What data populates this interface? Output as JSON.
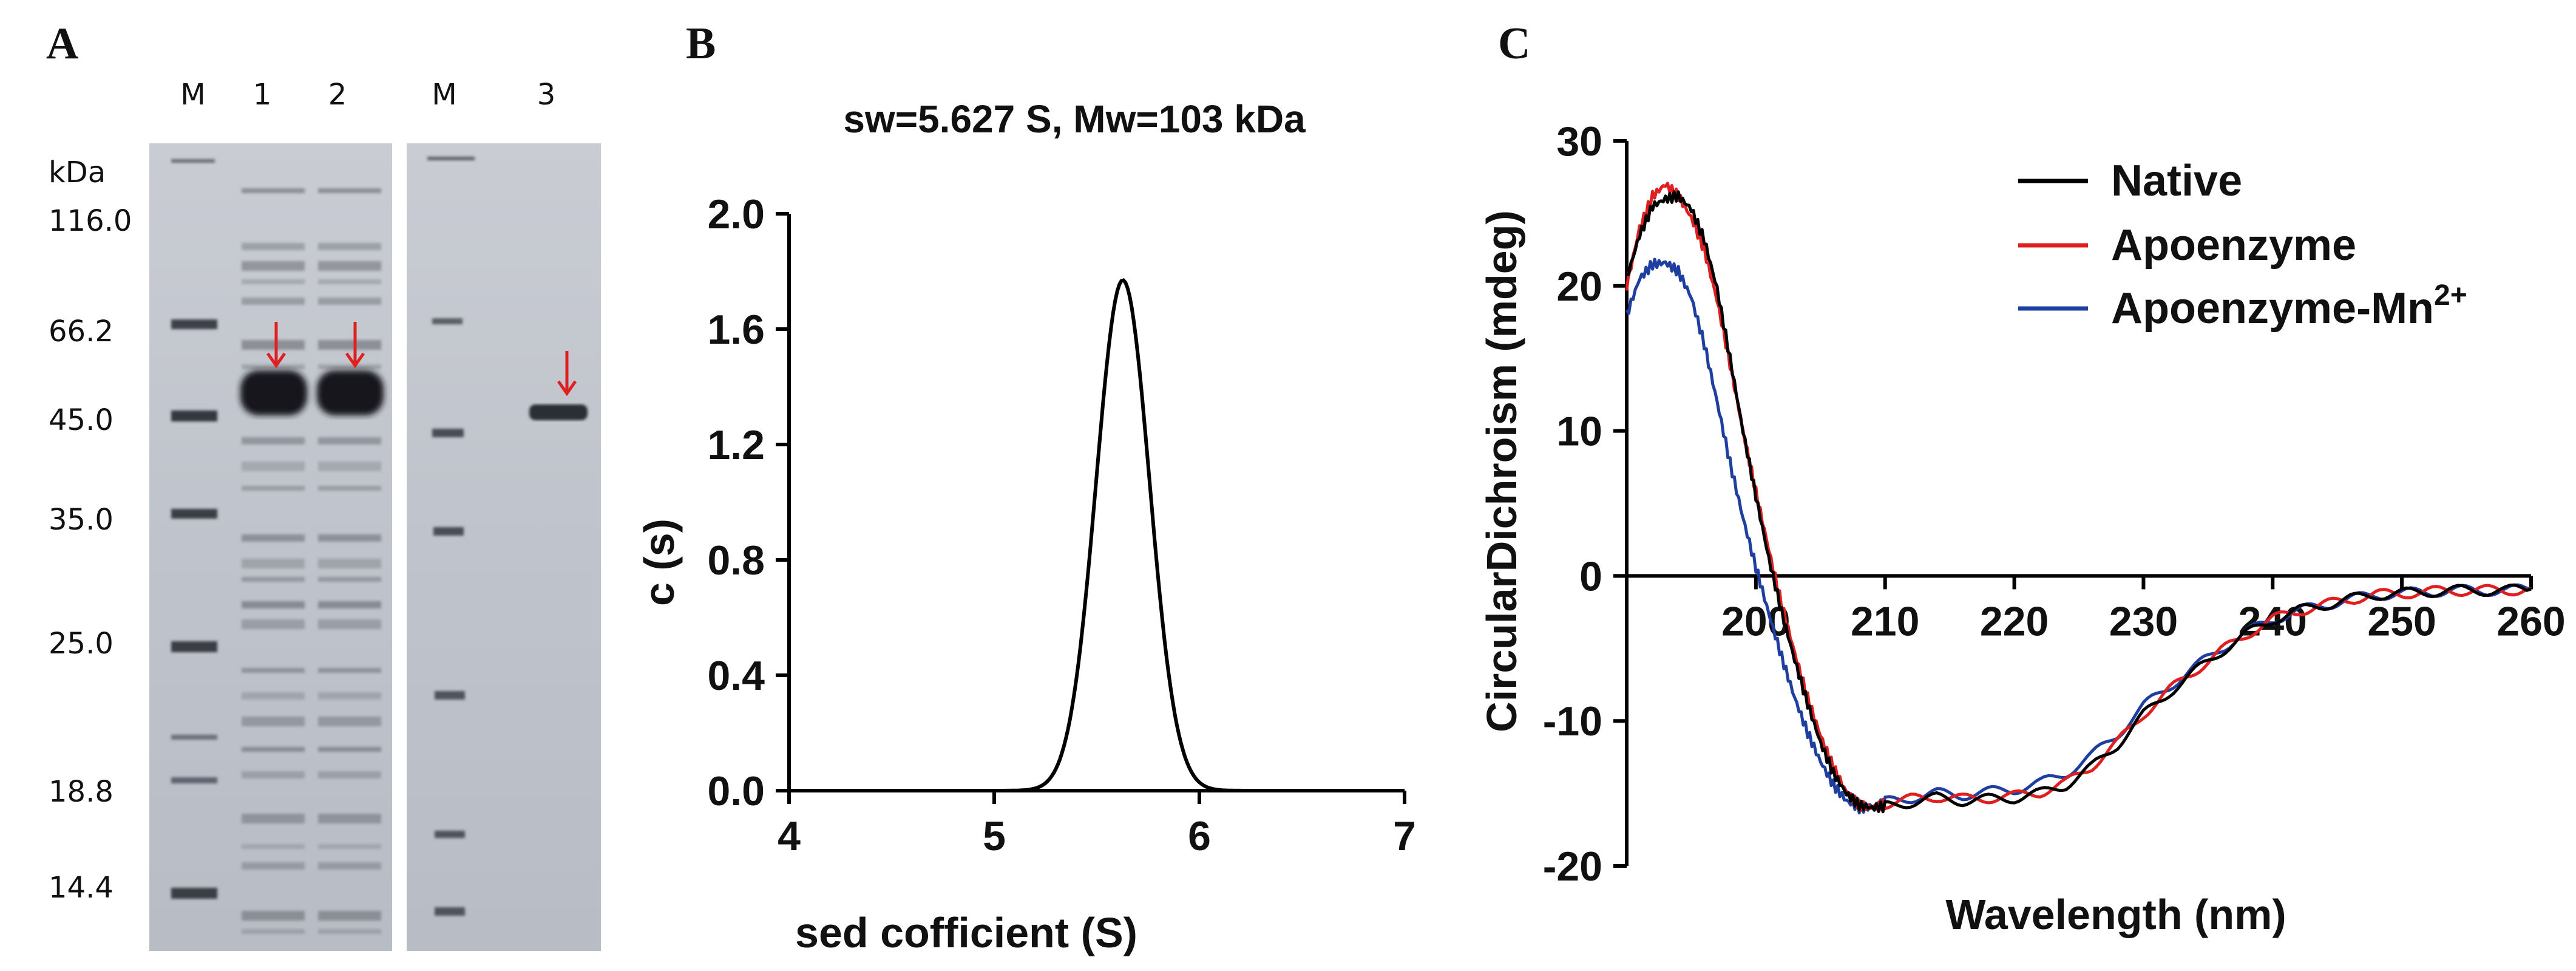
{
  "panels": {
    "A": {
      "letter": "A"
    },
    "B": {
      "letter": "B"
    },
    "C": {
      "letter": "C"
    }
  },
  "gel": {
    "lane_headers": [
      "M",
      "1",
      "2",
      "M",
      "3"
    ],
    "unit_label": "kDa",
    "markers": [
      "116.0",
      "66.2",
      "45.0",
      "35.0",
      "25.0",
      "18.8",
      "14.4"
    ],
    "arrow_color": "#e02020"
  },
  "chart_data": [
    {
      "type": "line",
      "title": "sw=5.627 S, Mw=103 kDa",
      "xlabel": "sed cofficient (S)",
      "ylabel": "c (s)",
      "xlim": [
        4,
        7
      ],
      "ylim": [
        0,
        2.0
      ],
      "xticks": [
        "4",
        "5",
        "6",
        "7"
      ],
      "yticks": [
        "0.0",
        "0.4",
        "0.8",
        "1.2",
        "1.6",
        "2.0"
      ],
      "peak_center": 5.627,
      "peak_height": 1.77,
      "peak_sigma": 0.13,
      "series": [
        {
          "name": "c(s)",
          "color": "#000000",
          "x": [
            4.0,
            5.0,
            5.2,
            5.3,
            5.4,
            5.5,
            5.55,
            5.6,
            5.627,
            5.65,
            5.7,
            5.8,
            5.9,
            6.0,
            6.2,
            7.0
          ],
          "y": [
            0.0,
            0.0,
            0.01,
            0.06,
            0.28,
            0.87,
            1.28,
            1.69,
            1.77,
            1.74,
            1.53,
            0.78,
            0.23,
            0.03,
            0.0,
            0.0
          ]
        }
      ]
    },
    {
      "type": "line",
      "title": "",
      "xlabel": "Wavelength (nm)",
      "ylabel": "CircularDichroism (mdeg)",
      "xlim": [
        190,
        260
      ],
      "ylim": [
        -20,
        30
      ],
      "xticks": [
        "200",
        "210",
        "220",
        "230",
        "240",
        "250",
        "260"
      ],
      "yticks": [
        "-20",
        "-10",
        "0",
        "10",
        "20",
        "30"
      ],
      "legend": [
        "Native",
        "Apoenzyme",
        "Apoenzyme-Mn2+"
      ],
      "legend_label_3": "Apoenzyme-Mn",
      "legend_sup_3": "2+",
      "series": [
        {
          "name": "Native",
          "color": "#000000",
          "x": [
            190,
            191,
            192,
            193,
            194,
            195,
            196,
            197,
            198,
            199,
            200,
            201,
            202,
            203,
            204,
            205,
            206,
            207,
            208,
            209,
            210,
            212,
            214,
            216,
            218,
            220,
            222,
            224,
            226,
            228,
            230,
            232,
            234,
            236,
            238,
            240,
            242,
            244,
            246,
            248,
            250,
            252,
            254,
            256,
            258,
            260
          ],
          "y": [
            20.5,
            23.5,
            25.5,
            26.0,
            26.2,
            25.3,
            23.2,
            19.8,
            15.0,
            10.0,
            5.5,
            1.2,
            -2.5,
            -5.8,
            -8.8,
            -11.5,
            -13.6,
            -15.0,
            -15.8,
            -16.0,
            -15.9,
            -15.6,
            -15.3,
            -15.5,
            -15.4,
            -15.3,
            -15.0,
            -14.4,
            -13.2,
            -11.6,
            -9.6,
            -8.0,
            -6.6,
            -5.2,
            -4.0,
            -3.0,
            -2.4,
            -2.0,
            -1.6,
            -1.3,
            -1.2,
            -1.1,
            -1.0,
            -1.0,
            -1.0,
            -0.9
          ]
        },
        {
          "name": "Apoenzyme",
          "color": "#e02020",
          "x": [
            190,
            191,
            192,
            193,
            194,
            195,
            196,
            197,
            198,
            199,
            200,
            201,
            202,
            203,
            204,
            205,
            206,
            207,
            208,
            209,
            210,
            212,
            214,
            216,
            218,
            220,
            222,
            224,
            226,
            228,
            230,
            232,
            234,
            236,
            238,
            240,
            242,
            244,
            246,
            248,
            250,
            252,
            254,
            256,
            258,
            260
          ],
          "y": [
            20.0,
            24.0,
            26.2,
            27.0,
            26.2,
            24.7,
            22.5,
            19.0,
            14.6,
            10.0,
            5.8,
            1.8,
            -2.0,
            -5.3,
            -8.4,
            -11.0,
            -13.2,
            -14.9,
            -15.8,
            -16.0,
            -15.7,
            -15.4,
            -15.2,
            -15.4,
            -15.3,
            -15.2,
            -14.9,
            -14.3,
            -13.1,
            -11.5,
            -9.5,
            -7.9,
            -6.5,
            -5.2,
            -4.0,
            -3.0,
            -2.4,
            -2.0,
            -1.6,
            -1.3,
            -1.2,
            -1.1,
            -1.0,
            -1.0,
            -1.0,
            -0.9
          ]
        },
        {
          "name": "Apoenzyme-Mn2+",
          "color": "#1f3fa0",
          "x": [
            190,
            191,
            192,
            193,
            194,
            195,
            196,
            197,
            198,
            199,
            200,
            201,
            202,
            203,
            204,
            205,
            206,
            207,
            208,
            209,
            210,
            212,
            214,
            216,
            218,
            220,
            222,
            224,
            226,
            228,
            230,
            232,
            234,
            236,
            238,
            240,
            242,
            244,
            246,
            248,
            250,
            252,
            254,
            256,
            258,
            260
          ],
          "y": [
            18.0,
            20.5,
            21.5,
            21.6,
            21.0,
            19.2,
            16.0,
            12.0,
            7.8,
            4.0,
            0.6,
            -2.6,
            -5.6,
            -8.4,
            -10.8,
            -12.8,
            -14.4,
            -15.5,
            -16.0,
            -15.9,
            -15.6,
            -15.3,
            -15.0,
            -15.1,
            -14.9,
            -14.7,
            -14.3,
            -13.6,
            -12.4,
            -10.9,
            -9.0,
            -7.6,
            -6.3,
            -5.0,
            -3.9,
            -3.0,
            -2.4,
            -2.0,
            -1.6,
            -1.3,
            -1.2,
            -1.1,
            -1.0,
            -1.0,
            -1.0,
            -0.9
          ]
        }
      ]
    }
  ]
}
